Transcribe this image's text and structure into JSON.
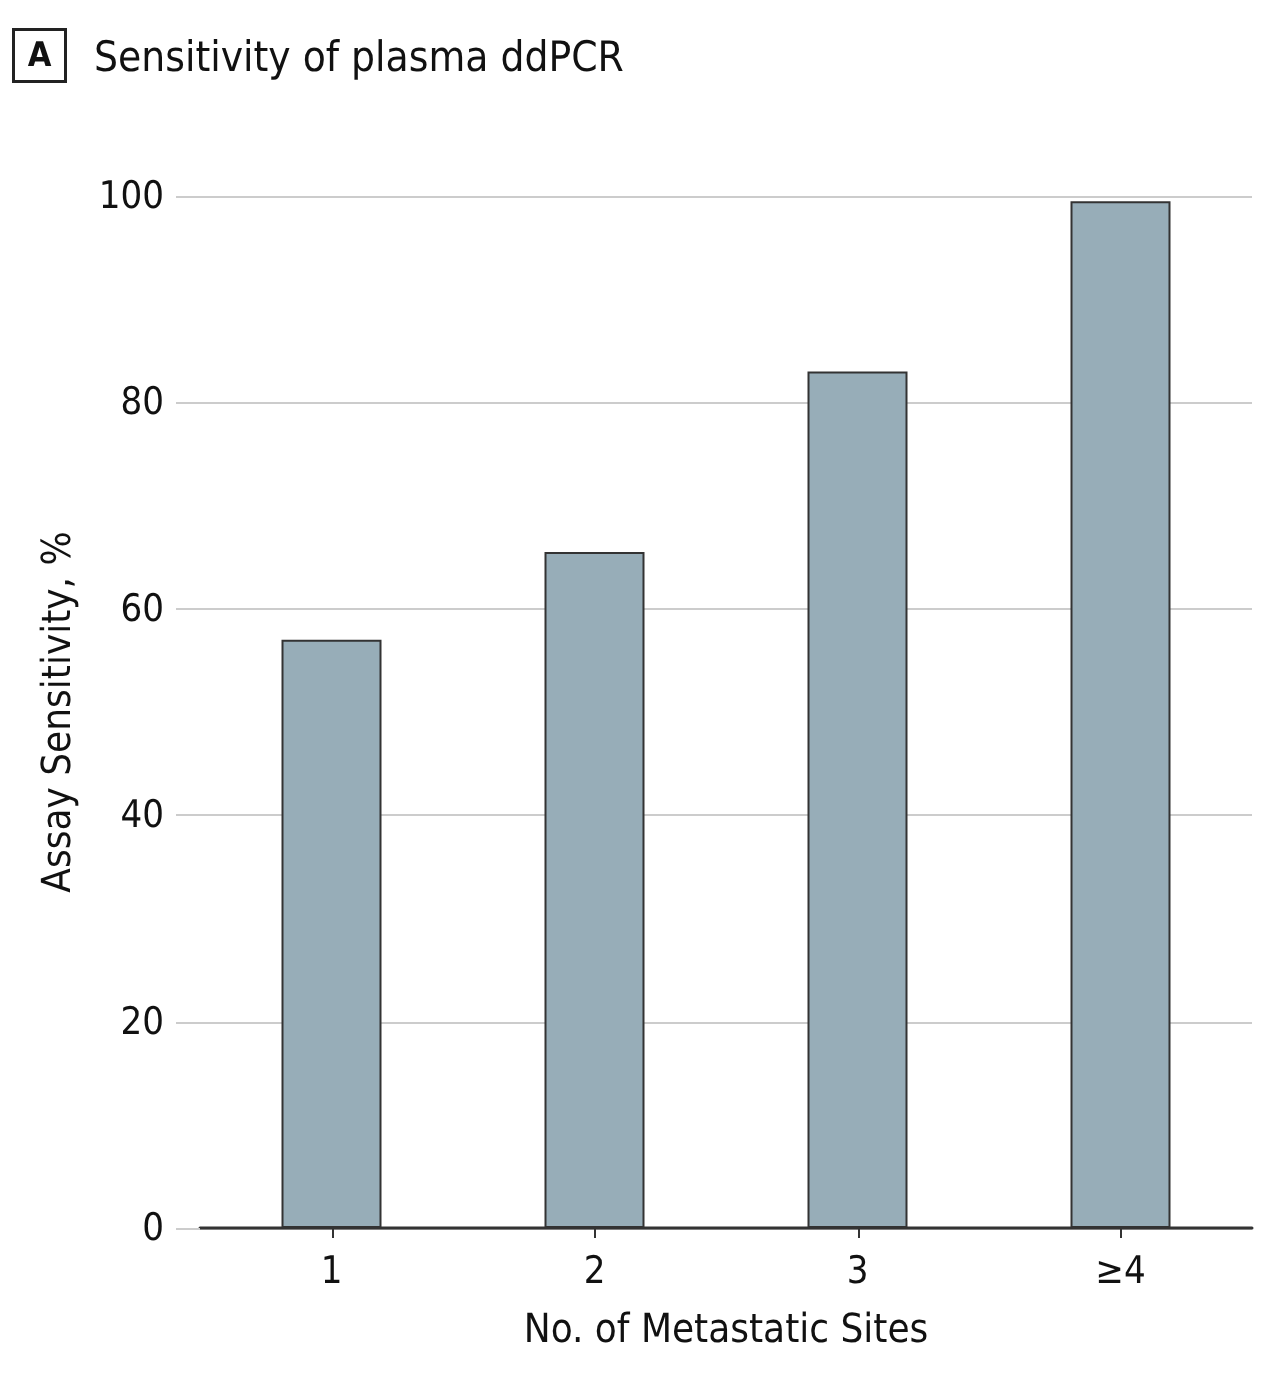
{
  "chart_data": {
    "type": "bar",
    "title": "Sensitivity of plasma ddPCR",
    "annotations": [
      "A"
    ],
    "xlabel": "No. of Metastatic Sites",
    "ylabel": "Assay Sensitivity, %",
    "categories": [
      "1",
      "2",
      "3",
      "≥4"
    ],
    "values": [
      57,
      65.5,
      83,
      99.5
    ],
    "color": "#97adb8",
    "ylim": [
      0,
      100
    ],
    "yticks": [
      0,
      20,
      40,
      60,
      80,
      100
    ],
    "grid": "y"
  }
}
